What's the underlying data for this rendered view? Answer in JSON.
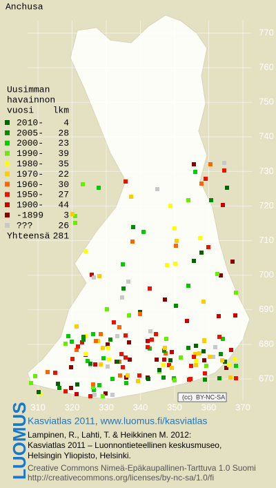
{
  "title": "Anchusa",
  "legend": {
    "heading": [
      "Uusimman",
      "havainnon"
    ],
    "col_period": "vuosi",
    "col_count": "lkm",
    "rows": [
      {
        "label": "2010-",
        "count": 4,
        "color": "#006400"
      },
      {
        "label": "2005-",
        "count": 28,
        "color": "#008c00"
      },
      {
        "label": "2000-",
        "count": 23,
        "color": "#00cc00"
      },
      {
        "label": "1990-",
        "count": 39,
        "color": "#66ee00"
      },
      {
        "label": "1980-",
        "count": 35,
        "color": "#ffff00"
      },
      {
        "label": "1970-",
        "count": 22,
        "color": "#ffcc00"
      },
      {
        "label": "1960-",
        "count": 30,
        "color": "#ff6600"
      },
      {
        "label": "1950-",
        "count": 27,
        "color": "#ee1100"
      },
      {
        "label": "1900-",
        "count": 44,
        "color": "#cc0000"
      },
      {
        "label": "-1899",
        "count": 3,
        "color": "#880000"
      },
      {
        "label": "???",
        "count": 26,
        "color": "#c8c8c8"
      }
    ],
    "total_label": "Yhteensä",
    "total": 281
  },
  "grid": {
    "x_labels": [
      310,
      320,
      330,
      340,
      350,
      360,
      370
    ],
    "y_labels": [
      670,
      680,
      690,
      700,
      710,
      720,
      730,
      740,
      750,
      760,
      770
    ]
  },
  "badge": "BY-NC-SA",
  "footer": {
    "logo": "LUOMUS",
    "link": "Kasviatlas 2011, www.luomus.fi/kasviatlas",
    "citation": [
      "Lampinen, R., Lahti, T. & Heikkinen M. 2012:",
      "Kasviatlas 2011 – Luonnontieteellinen keskusmuseo,",
      "Helsingin Yliopisto, Helsinki."
    ],
    "license": [
      "Creative Commons Nimeä-Epäkaupallinen-Tarttuva 1.0 Suomi",
      "http://creativecommons.org/licenses/by-nc-sa/1.0/fi"
    ]
  }
}
